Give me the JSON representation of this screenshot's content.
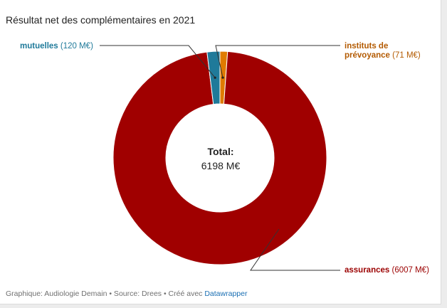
{
  "chart_data": {
    "type": "pie",
    "title": "Résultat net des complémentaires en 2021",
    "center_label": "Total:",
    "center_value": "6198 M€",
    "slices": [
      {
        "name": "mutuelles",
        "value": 120,
        "value_label": "(120 M€)",
        "color": "#1f7a9a"
      },
      {
        "name": "instituts de prévoyance",
        "name_line1": "instituts de",
        "name_line2": "prévoyance",
        "value": 71,
        "value_label": "(71 M€)",
        "color": "#e07b00"
      },
      {
        "name": "assurances",
        "value": 6007,
        "value_label": "(6007 M€)",
        "color": "#a00000"
      }
    ]
  },
  "footer": {
    "text": "Graphique: Audiologie Demain • Source: Drees • Créé avec ",
    "link": "Datawrapper"
  }
}
